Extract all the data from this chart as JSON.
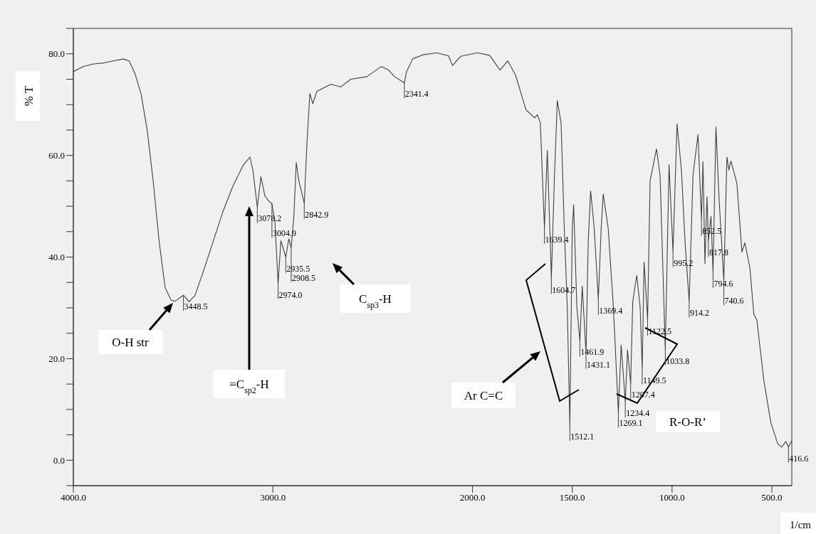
{
  "chart_data": {
    "type": "line",
    "xlabel": "1/cm",
    "ylabel": "% T",
    "xlim": [
      4000,
      400
    ],
    "ylim": [
      -5,
      85
    ],
    "xticks": [
      {
        "value": 4000,
        "label": "4000.0"
      },
      {
        "value": 3000,
        "label": "3000.0"
      },
      {
        "value": 2000,
        "label": "2000.0"
      },
      {
        "value": 1500,
        "label": "1500.0"
      },
      {
        "value": 1000,
        "label": "1000.0"
      },
      {
        "value": 500,
        "label": "500.0"
      }
    ],
    "yticks": [
      {
        "value": -5,
        "label": null
      },
      {
        "value": 0,
        "label": "0.0"
      },
      {
        "value": 5,
        "label": null
      },
      {
        "value": 10,
        "label": null
      },
      {
        "value": 15,
        "label": null
      },
      {
        "value": 20,
        "label": "20.0"
      },
      {
        "value": 25,
        "label": null
      },
      {
        "value": 30,
        "label": null
      },
      {
        "value": 35,
        "label": null
      },
      {
        "value": 40,
        "label": "40.0"
      },
      {
        "value": 45,
        "label": null
      },
      {
        "value": 50,
        "label": null
      },
      {
        "value": 55,
        "label": null
      },
      {
        "value": 60,
        "label": "60.0"
      },
      {
        "value": 65,
        "label": null
      },
      {
        "value": 70,
        "label": null
      },
      {
        "value": 75,
        "label": null
      },
      {
        "value": 80,
        "label": "80.0"
      },
      {
        "value": 85,
        "label": null
      }
    ],
    "grid": false,
    "legend": false,
    "marker": "none",
    "line_style": "solid",
    "series": [
      {
        "color": "#404040",
        "x": [
          4000,
          3950,
          3900,
          3850,
          3800,
          3750,
          3720,
          3690,
          3660,
          3630,
          3600,
          3570,
          3540,
          3510,
          3490,
          3448.5,
          3420,
          3390,
          3350,
          3300,
          3250,
          3200,
          3150,
          3115,
          3100,
          3078.2,
          3060,
          3040,
          3020,
          3004.9,
          2990,
          2974.0,
          2960,
          2935.5,
          2920,
          2908.5,
          2895,
          2883,
          2870,
          2842.9,
          2830,
          2815,
          2800,
          2780,
          2710,
          2660,
          2610,
          2530,
          2457,
          2420,
          2390,
          2341.4,
          2330,
          2300,
          2250,
          2180,
          2120,
          2100,
          2060,
          1975,
          1914,
          1862,
          1823,
          1784,
          1732,
          1688,
          1675,
          1660,
          1639.4,
          1625,
          1604.7,
          1590,
          1575,
          1556,
          1540,
          1525,
          1512.1,
          1500,
          1493,
          1477,
          1461.9,
          1450,
          1431.1,
          1420,
          1408,
          1390,
          1369.4,
          1355,
          1345,
          1320,
          1294,
          1269.1,
          1255,
          1234.4,
          1223,
          1207.4,
          1197,
          1177,
          1160,
          1149.5,
          1140,
          1122.5,
          1110,
          1078,
          1060,
          1033.8,
          1015,
          995.2,
          975,
          953,
          935,
          914.2,
          895,
          870,
          852.5,
          845,
          835,
          825,
          817.8,
          805,
          794.6,
          780,
          765,
          740.6,
          725,
          715,
          705,
          675,
          650,
          635,
          610,
          590,
          575,
          540,
          505,
          470,
          450,
          430,
          416.6,
          400
        ],
        "values": [
          76.5,
          77.5,
          78,
          78.2,
          78.6,
          79,
          78.6,
          76,
          72,
          65,
          55,
          43,
          34,
          31.5,
          31.3,
          32.5,
          31.2,
          32.5,
          37,
          43,
          49,
          54,
          58,
          59.7,
          57,
          49.8,
          55.8,
          52,
          51,
          50.5,
          47,
          34.8,
          43.2,
          40,
          43.6,
          41.8,
          48,
          58.6,
          55,
          50.6,
          62,
          72.2,
          70.2,
          72.6,
          74,
          73.5,
          75,
          75.5,
          77.5,
          76.8,
          75.5,
          74.3,
          76.5,
          79,
          79.8,
          80.2,
          79.6,
          77.7,
          79.5,
          80.2,
          79.7,
          76.8,
          78.6,
          75.8,
          69,
          67.4,
          68,
          66.4,
          45.7,
          61,
          35.8,
          55,
          70.8,
          66.4,
          45.7,
          30.2,
          6.9,
          45.7,
          50.3,
          30.2,
          23.5,
          34.3,
          21.1,
          43.1,
          53,
          45.7,
          31.7,
          45.7,
          52.4,
          45.7,
          30.2,
          9.5,
          22.7,
          11.5,
          21.7,
          15.1,
          31.2,
          36.4,
          30.2,
          18,
          39,
          27.6,
          55,
          61.3,
          56.1,
          21.8,
          58.2,
          41.1,
          66.2,
          57.1,
          43.1,
          31.2,
          56.1,
          64.1,
          47.3,
          58.8,
          38.7,
          51.9,
          43.1,
          48,
          37,
          65.6,
          52,
          35.4,
          59.7,
          57.1,
          58.9,
          54.5,
          41,
          42.8,
          37.9,
          28.7,
          27.6,
          15.7,
          7.4,
          3.2,
          2.6,
          3.7,
          2.6,
          3.9
        ]
      }
    ],
    "annotations": [
      "O-H str",
      "=C$_{sp2}$-H",
      "C$_{sp3}$-H",
      "Ar C=C",
      "R-O-R’",
      {
        "text": "3448.5",
        "x": 3448.5,
        "y": 32.5
      },
      {
        "text": "3078.2",
        "x": 3078.2,
        "y": 49.8
      },
      {
        "text": "3004.9",
        "x": 3004.9,
        "y": 50.5
      },
      {
        "text": "2974.0",
        "x": 2974.0,
        "y": 34.8
      },
      {
        "text": "2935.5",
        "x": 2935.5,
        "y": 40
      },
      {
        "text": "2908.5",
        "x": 2908.5,
        "y": 41.8
      },
      {
        "text": "2842.9",
        "x": 2842.9,
        "y": 50.6
      },
      {
        "text": "2341.4",
        "x": 2341.4,
        "y": 74.3
      },
      {
        "text": "1639.4",
        "x": 1639.4,
        "y": 45.7
      },
      {
        "text": "1604.7",
        "x": 1604.7,
        "y": 35.8
      },
      {
        "text": "1512.1",
        "x": 1512.1,
        "y": 6.9
      },
      {
        "text": "1461.9",
        "x": 1461.9,
        "y": 23.5
      },
      {
        "text": "1431.1",
        "x": 1431.1,
        "y": 21.1
      },
      {
        "text": "1369.4",
        "x": 1369.4,
        "y": 31.7
      },
      {
        "text": "1269.1",
        "x": 1269.1,
        "y": 9.5
      },
      {
        "text": "1234.4",
        "x": 1234.4,
        "y": 11.5
      },
      {
        "text": "1207.4",
        "x": 1207.4,
        "y": 15.1
      },
      {
        "text": "1149.5",
        "x": 1149.5,
        "y": 18
      },
      {
        "text": "1122.5",
        "x": 1122.5,
        "y": 27.6
      },
      {
        "text": "1033.8",
        "x": 1033.8,
        "y": 21.8
      },
      {
        "text": "995.2",
        "x": 995.2,
        "y": 41.1
      },
      {
        "text": "914.2",
        "x": 914.2,
        "y": 31.2
      },
      {
        "text": "852.5",
        "x": 852.5,
        "y": 47.3
      },
      {
        "text": "817.8",
        "x": 817.8,
        "y": 43.1
      },
      {
        "text": "794.6",
        "x": 794.6,
        "y": 37
      },
      {
        "text": "740.6",
        "x": 740.6,
        "y": 35.4
      },
      {
        "text": "416.6",
        "x": 416.6,
        "y": 2.6
      }
    ]
  }
}
